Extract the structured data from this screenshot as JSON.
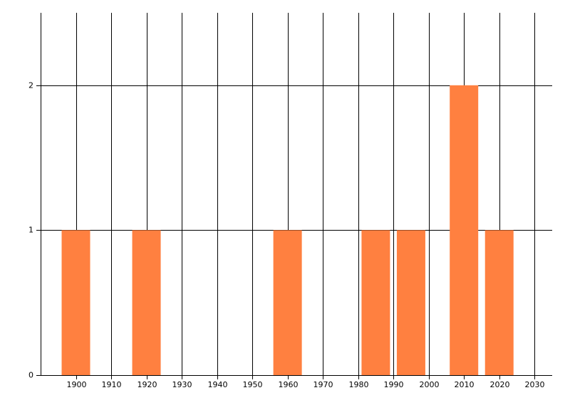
{
  "chart_data": {
    "type": "bar",
    "x": [
      1900,
      1920,
      1960,
      1985,
      1995,
      2010,
      2020
    ],
    "values": [
      1,
      1,
      1,
      1,
      1,
      2,
      1
    ],
    "color": "#ff8040",
    "xlim": [
      1890,
      2035
    ],
    "xticks": [
      1900,
      1910,
      1920,
      1930,
      1940,
      1950,
      1960,
      1970,
      1980,
      1990,
      2000,
      2010,
      2020,
      2030
    ],
    "ylim": [
      0,
      2.5
    ],
    "yticks": [
      0,
      1,
      2
    ],
    "grid": true
  }
}
